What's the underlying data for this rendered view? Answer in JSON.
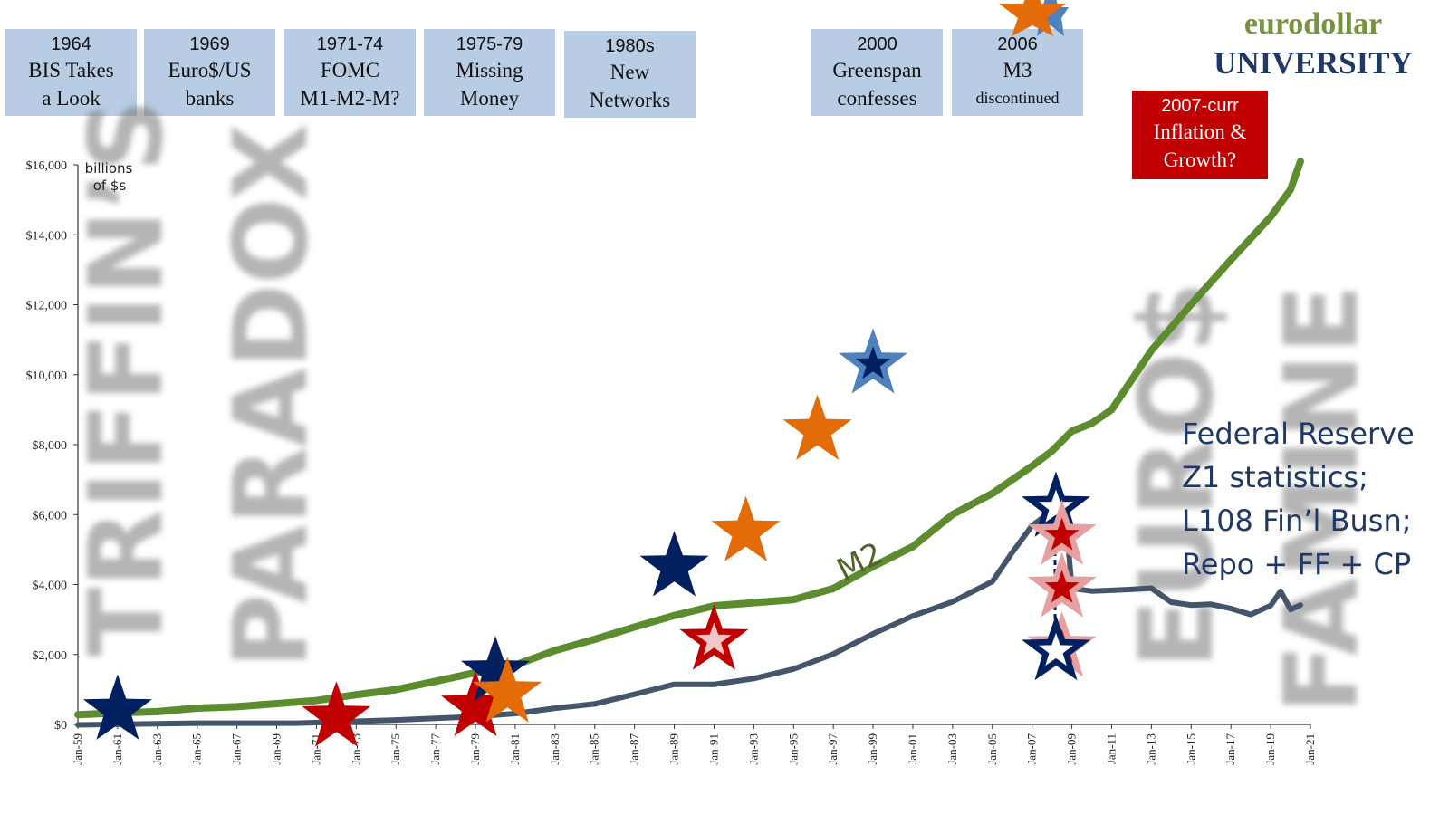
{
  "timeline": [
    {
      "year": "1964",
      "lines": [
        "BIS Takes",
        "a Look"
      ]
    },
    {
      "year": "1969",
      "lines": [
        "Euro$/US",
        "banks"
      ]
    },
    {
      "year": "1971-74",
      "lines": [
        "FOMC",
        "M1-M2-M?"
      ]
    },
    {
      "year": "1975-79",
      "lines": [
        "Missing",
        "Money"
      ]
    },
    {
      "year": "1980s",
      "lines": [
        "New",
        "Networks"
      ]
    },
    {
      "year": "2000",
      "lines": [
        "Greenspan",
        "confesses"
      ]
    },
    {
      "year": "2006",
      "lines": [
        "M3",
        "discontinued"
      ]
    }
  ],
  "timeline_current": {
    "year": "2007-curr",
    "lines": [
      "Inflation &",
      "Growth?"
    ]
  },
  "logo": {
    "line1": "eurodollar",
    "line2": "UNIVERSITY"
  },
  "source_note": [
    "Federal Reserve",
    "Z1 statistics;",
    "L108 Fin’l Busn;",
    "Repo + FF + CP"
  ],
  "watermarks": [
    "TRIFFIN’S",
    "PARADOX",
    "EURO$",
    "FAMINE"
  ],
  "colors": {
    "m2": "#5d8c2f",
    "repo": "#44546a",
    "navy": "#002060",
    "red": "#c00000",
    "orange": "#e36c09",
    "lightblue": "#4f81bd",
    "pink": "#e6a0a0",
    "timeline_bg": "#b8cce4"
  },
  "chart_data": {
    "type": "line",
    "ylabel": "billions of $s",
    "ylim": [
      0,
      16000
    ],
    "yticks": [
      "$0",
      "$2,000",
      "$4,000",
      "$6,000",
      "$8,000",
      "$10,000",
      "$12,000",
      "$14,000",
      "$16,000"
    ],
    "xticks": [
      "Jan-59",
      "Jan-61",
      "Jan-63",
      "Jan-65",
      "Jan-67",
      "Jan-69",
      "Jan-71",
      "Jan-73",
      "Jan-75",
      "Jan-77",
      "Jan-79",
      "Jan-81",
      "Jan-83",
      "Jan-85",
      "Jan-87",
      "Jan-89",
      "Jan-91",
      "Jan-93",
      "Jan-95",
      "Jan-97",
      "Jan-99",
      "Jan-01",
      "Jan-03",
      "Jan-05",
      "Jan-07",
      "Jan-09",
      "Jan-11",
      "Jan-13",
      "Jan-15",
      "Jan-17",
      "Jan-19",
      "Jan-21"
    ],
    "series": [
      {
        "name": "M2",
        "color": "#5d8c2f",
        "x": [
          1959,
          1961,
          1963,
          1965,
          1967,
          1969,
          1971,
          1973,
          1975,
          1977,
          1979,
          1981,
          1983,
          1985,
          1987,
          1989,
          1991,
          1993,
          1995,
          1997,
          1999,
          2001,
          2003,
          2005,
          2007,
          2008,
          2009,
          2010,
          2011,
          2013,
          2015,
          2017,
          2019,
          2020,
          2020.5
        ],
        "values": [
          280,
          320,
          380,
          450,
          520,
          590,
          680,
          860,
          980,
          1250,
          1470,
          1700,
          2120,
          2420,
          2800,
          3100,
          3400,
          3480,
          3560,
          3900,
          4500,
          5100,
          6000,
          6600,
          7400,
          7800,
          8400,
          8600,
          9000,
          10700,
          12000,
          13300,
          14500,
          15300,
          16100
        ]
      },
      {
        "name": "",
        "color": "#44546a",
        "x": [
          1959,
          1965,
          1970,
          1975,
          1979,
          1981,
          1983,
          1985,
          1987,
          1989,
          1991,
          1993,
          1995,
          1997,
          1999,
          2001,
          2003,
          2005,
          2006,
          2007,
          2008,
          2008.8,
          2009,
          2010,
          2011,
          2012,
          2013,
          2014,
          2015,
          2016,
          2017,
          2018,
          2019,
          2019.5,
          2020,
          2020.5
        ],
        "values": [
          0,
          20,
          50,
          120,
          220,
          320,
          450,
          600,
          850,
          1150,
          1150,
          1300,
          1600,
          2000,
          2600,
          3100,
          3500,
          4100,
          4900,
          5700,
          6100,
          5200,
          3900,
          3800,
          3850,
          3850,
          3900,
          3500,
          3400,
          3450,
          3300,
          3150,
          3400,
          3800,
          3300,
          3400
        ]
      }
    ],
    "series_label": "M2",
    "stars": [
      {
        "x": 1961,
        "y": 400,
        "color": "navy",
        "style": "solid"
      },
      {
        "x": 1972,
        "y": 200,
        "color": "red",
        "style": "solid"
      },
      {
        "x": 1979,
        "y": 500,
        "color": "red",
        "style": "solid"
      },
      {
        "x": 1980,
        "y": 1500,
        "color": "navy",
        "style": "solid"
      },
      {
        "x": 1980.6,
        "y": 900,
        "color": "orange",
        "style": "solid"
      },
      {
        "x": 1989,
        "y": 4500,
        "color": "navy",
        "style": "solid"
      },
      {
        "x": 1991,
        "y": 2400,
        "color": "red",
        "style": "ring"
      },
      {
        "x": 1992.6,
        "y": 5500,
        "color": "orange",
        "style": "solid"
      },
      {
        "x": 1996.2,
        "y": 8400,
        "color": "orange",
        "style": "solid"
      },
      {
        "x": 1999,
        "y": 10300,
        "color": "lightblue",
        "style": "ring"
      },
      {
        "x": 2008.2,
        "y": 6200,
        "color": "navy",
        "style": "ring"
      },
      {
        "x": 2008.5,
        "y": 5400,
        "color": "pink",
        "style": "ring"
      },
      {
        "x": 2008.5,
        "y": 3900,
        "color": "pink",
        "style": "ring"
      },
      {
        "x": 2008.5,
        "y": 2200,
        "color": "pink",
        "style": "ring"
      },
      {
        "x": 2008.2,
        "y": 2100,
        "color": "navy",
        "style": "ring"
      }
    ]
  }
}
